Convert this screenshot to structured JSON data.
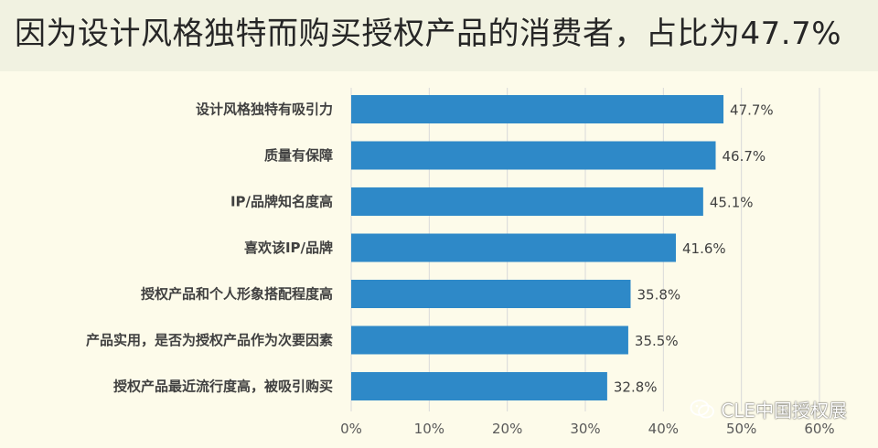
{
  "title": "因为设计风格独特而购买授权产品的消费者，占比为47.7%",
  "watermark": {
    "icon": "wechat-icon",
    "text": "CLE中国授权展"
  },
  "colors": {
    "bar": "#2e89c8",
    "background": "#fdfbea",
    "title_band": "#f1f2e1",
    "grid": "#d9d9d9"
  },
  "chart_data": {
    "type": "bar",
    "orientation": "horizontal",
    "categories": [
      "设计风格独特有吸引力",
      "质量有保障",
      "IP/品牌知名度高",
      "喜欢该IP/品牌",
      "授权产品和个人形象搭配程度高",
      "产品实用，是否为授权产品作为次要因素",
      "授权产品最近流行度高，被吸引购买"
    ],
    "values": [
      47.7,
      46.7,
      45.1,
      41.6,
      35.8,
      35.5,
      32.8
    ],
    "value_labels": [
      "47.7%",
      "46.7%",
      "45.1%",
      "41.6%",
      "35.8%",
      "35.5%",
      "32.8%"
    ],
    "x_ticks": [
      "0%",
      "10%",
      "20%",
      "30%",
      "40%",
      "50%",
      "60%"
    ],
    "xlim": [
      0,
      60
    ],
    "grid": true,
    "title": "因为设计风格独特而购买授权产品的消费者，占比为47.7%",
    "xlabel": "",
    "ylabel": ""
  }
}
